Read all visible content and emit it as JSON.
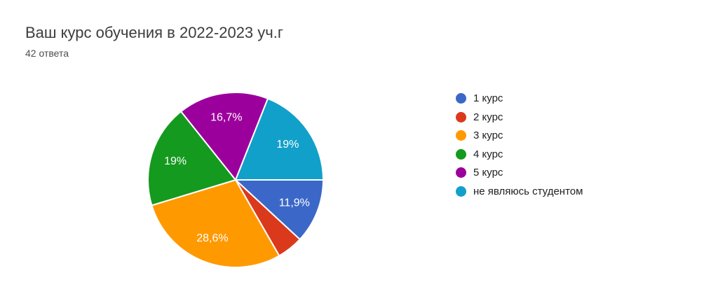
{
  "page": {
    "title": "Ваш курс обучения в 2022-2023 уч.г",
    "response_count": "42 ответа"
  },
  "chart_data": {
    "type": "pie",
    "title": "Ваш курс обучения в 2022-2023 уч.г",
    "subtitle": "42 ответа",
    "total_responses": 42,
    "categories": [
      "1 курс",
      "2 курс",
      "3 курс",
      "4 курс",
      "5 курс",
      "не являюсь студентом"
    ],
    "values": [
      11.9,
      4.8,
      28.6,
      19,
      16.7,
      19
    ],
    "slice_labels": [
      "11,9%",
      "",
      "28,6%",
      "19%",
      "16,7%",
      "19%"
    ],
    "colors": [
      "#3B68C8",
      "#DA3A1B",
      "#FF9900",
      "#149A1E",
      "#9C009C",
      "#11A0C9"
    ],
    "slice_label_color": "#FFFFFF",
    "legend_position": "right",
    "start_angle": "east",
    "direction": "clockwise"
  }
}
